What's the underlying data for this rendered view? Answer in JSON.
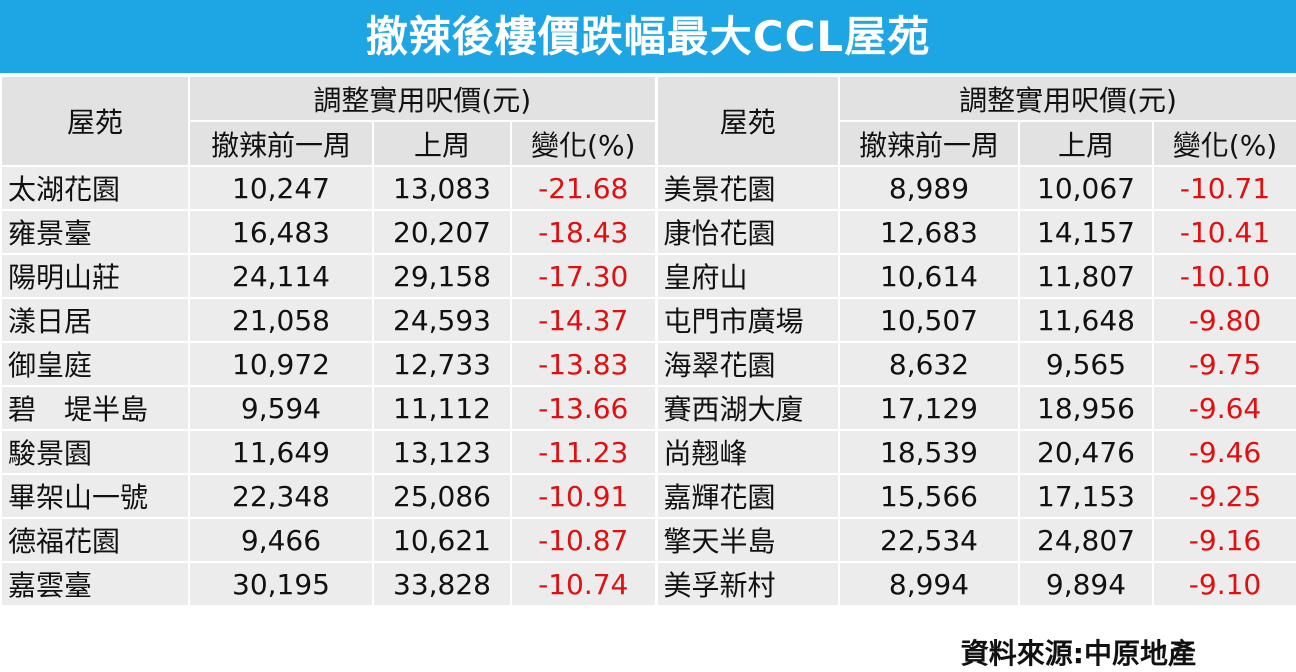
{
  "header": {
    "title": "撤辣後樓價跌幅最大CCL屋苑"
  },
  "table": {
    "headers": [
      {
        "estate": "屋苑",
        "group": "調整實用呎價(元)",
        "columns": [
          "撤辣前一周",
          "上周",
          "變化(%)"
        ]
      },
      {
        "estate": "屋苑",
        "group": "調整實用呎價(元)",
        "columns": [
          "撤辣前一周",
          "上周",
          "變化(%)"
        ]
      }
    ],
    "left_rows": [
      [
        "太湖花園",
        "10,247",
        "13,083",
        "-21.68"
      ],
      [
        "雍景臺",
        "16,483",
        "20,207",
        "-18.43"
      ],
      [
        "陽明山莊",
        "24,114",
        "29,158",
        "-17.30"
      ],
      [
        "漾日居",
        "21,058",
        "24,593",
        "-14.37"
      ],
      [
        "御皇庭",
        "10,972",
        "12,733",
        "-13.83"
      ],
      [
        "碧　堤半島",
        "9,594",
        "11,112",
        "-13.66"
      ],
      [
        "駿景園",
        "11,649",
        "13,123",
        "-11.23"
      ],
      [
        "畢架山一號",
        "22,348",
        "25,086",
        "-10.91"
      ],
      [
        "德福花園",
        "9,466",
        "10,621",
        "-10.87"
      ],
      [
        "嘉雲臺",
        "30,195",
        "33,828",
        "-10.74"
      ]
    ],
    "right_rows": [
      [
        "美景花園",
        "8,989",
        "10,067",
        "-10.71"
      ],
      [
        "康怡花園",
        "12,683",
        "14,157",
        "-10.41"
      ],
      [
        "皇府山",
        "10,614",
        "11,807",
        "-10.10"
      ],
      [
        "屯門市廣場",
        "10,507",
        "11,648",
        "-9.80"
      ],
      [
        "海翠花園",
        "8,632",
        "9,565",
        "-9.75"
      ],
      [
        "賽西湖大廈",
        "17,129",
        "18,956",
        "-9.64"
      ],
      [
        "尚翹峰",
        "18,539",
        "20,476",
        "-9.46"
      ],
      [
        "嘉輝花園",
        "15,566",
        "17,153",
        "-9.25"
      ],
      [
        "擎天半島",
        "22,534",
        "24,807",
        "-9.16"
      ],
      [
        "美孚新村",
        "8,994",
        "9,894",
        "-9.10"
      ]
    ]
  },
  "footer": {
    "source": "資料來源:中原地產"
  }
}
